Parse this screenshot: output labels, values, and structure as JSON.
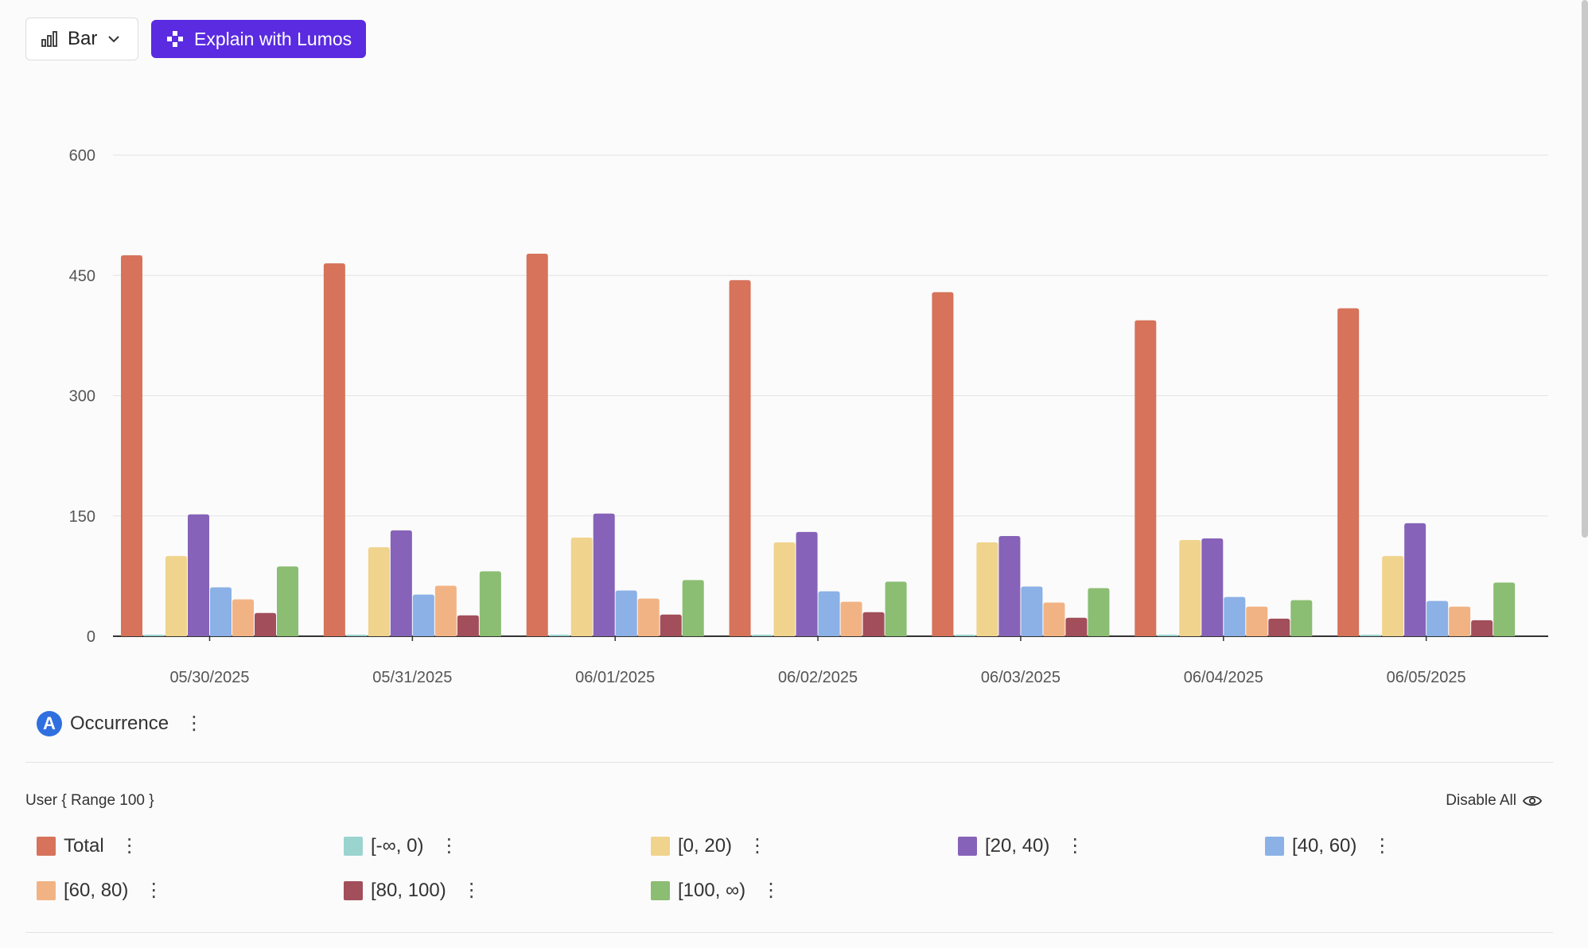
{
  "toolbar": {
    "chart_type_label": "Bar",
    "chart_type_icon": "bar-chart-icon",
    "lumos_label": "Explain with Lumos",
    "lumos_icon": "sparkle-icon",
    "lumos_color": "#5a2be0"
  },
  "query": {
    "badge": "A",
    "label": "Occurrence",
    "badge_color": "#2f6fdf"
  },
  "legend": {
    "group_label": "User { Range 100 }",
    "disable_all_label": "Disable All",
    "disable_all_icon": "eye-icon",
    "items": [
      {
        "label": "Total",
        "color": "#d6735a"
      },
      {
        "label": "[-∞, 0)",
        "color": "#9bd4cf"
      },
      {
        "label": "[0, 20)",
        "color": "#f0d38d"
      },
      {
        "label": "[20, 40)",
        "color": "#8663b8"
      },
      {
        "label": "[40, 60)",
        "color": "#8bb1e6"
      },
      {
        "label": "[60, 80)",
        "color": "#f2b384"
      },
      {
        "label": "[80, 100)",
        "color": "#a24e5b"
      },
      {
        "label": "[100, ∞)",
        "color": "#8bbd72"
      }
    ]
  },
  "chart_data": {
    "type": "bar",
    "categories": [
      "05/30/2025",
      "05/31/2025",
      "06/01/2025",
      "06/02/2025",
      "06/03/2025",
      "06/04/2025",
      "06/05/2025"
    ],
    "ylim": [
      0,
      600
    ],
    "yticks": [
      "0",
      "150",
      "300",
      "450",
      "600"
    ],
    "grid": true,
    "series": [
      {
        "name": "Total",
        "values": [
          475,
          465,
          477,
          444,
          429,
          394,
          409
        ]
      },
      {
        "name": "[-∞, 0)",
        "values": [
          2,
          2,
          2,
          2,
          2,
          2,
          2
        ]
      },
      {
        "name": "[0, 20)",
        "values": [
          100,
          111,
          123,
          117,
          117,
          120,
          100
        ]
      },
      {
        "name": "[20, 40)",
        "values": [
          152,
          132,
          153,
          130,
          125,
          122,
          141
        ]
      },
      {
        "name": "[40, 60)",
        "values": [
          61,
          52,
          57,
          56,
          62,
          49,
          44
        ]
      },
      {
        "name": "[60, 80)",
        "values": [
          46,
          63,
          47,
          43,
          42,
          37,
          37
        ]
      },
      {
        "name": "[80, 100)",
        "values": [
          29,
          26,
          27,
          30,
          23,
          22,
          20
        ]
      },
      {
        "name": "[100, ∞)",
        "values": [
          87,
          81,
          70,
          68,
          60,
          45,
          67
        ]
      }
    ]
  }
}
